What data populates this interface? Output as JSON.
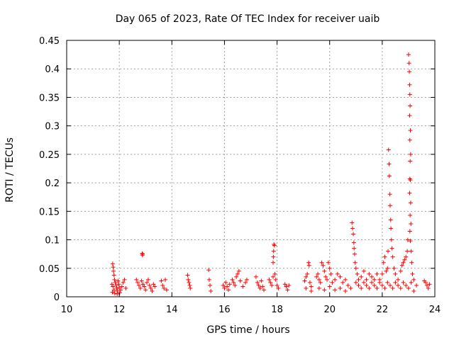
{
  "chart_data": {
    "type": "scatter",
    "title": "Day 065 of 2023, Rate Of TEC Index for receiver uaib",
    "xlabel": "GPS time / hours",
    "ylabel": "ROTI / TECUs",
    "xlim": [
      10,
      24
    ],
    "ylim": [
      0,
      0.45
    ],
    "xticks": [
      "10",
      "12",
      "14",
      "16",
      "18",
      "20",
      "22",
      "24"
    ],
    "yticks": [
      "0",
      "0.05",
      "0.1",
      "0.15",
      "0.2",
      "0.25",
      "0.3",
      "0.35",
      "0.4",
      "0.45"
    ],
    "grid": true,
    "marker": "+",
    "color": "#ff0000",
    "series": [
      {
        "points": [
          [
            11.75,
            0.058
          ],
          [
            11.77,
            0.052
          ],
          [
            11.78,
            0.045
          ],
          [
            11.8,
            0.038
          ],
          [
            11.82,
            0.03
          ],
          [
            11.72,
            0.022
          ],
          [
            11.76,
            0.018
          ],
          [
            11.8,
            0.012
          ],
          [
            11.85,
            0.025
          ],
          [
            11.88,
            0.02
          ],
          [
            11.9,
            0.015
          ],
          [
            11.93,
            0.01
          ],
          [
            11.95,
            0.028
          ],
          [
            11.98,
            0.022
          ],
          [
            12.0,
            0.016
          ],
          [
            12.05,
            0.012
          ],
          [
            12.1,
            0.018
          ],
          [
            12.15,
            0.025
          ],
          [
            12.2,
            0.03
          ],
          [
            12.25,
            0.015
          ],
          [
            11.74,
            0.008
          ],
          [
            11.83,
            0.006
          ],
          [
            11.92,
            0.005
          ],
          [
            12.02,
            0.007
          ],
          [
            12.65,
            0.03
          ],
          [
            12.7,
            0.025
          ],
          [
            12.75,
            0.02
          ],
          [
            12.8,
            0.015
          ],
          [
            12.85,
            0.028
          ],
          [
            12.9,
            0.022
          ],
          [
            12.95,
            0.018
          ],
          [
            13.0,
            0.012
          ],
          [
            13.05,
            0.025
          ],
          [
            13.1,
            0.03
          ],
          [
            13.15,
            0.02
          ],
          [
            13.2,
            0.015
          ],
          [
            13.25,
            0.01
          ],
          [
            13.3,
            0.022
          ],
          [
            13.35,
            0.018
          ],
          [
            12.87,
            0.076
          ],
          [
            12.88,
            0.073
          ],
          [
            12.89,
            0.075
          ],
          [
            13.6,
            0.028
          ],
          [
            13.65,
            0.02
          ],
          [
            13.7,
            0.015
          ],
          [
            13.75,
            0.03
          ],
          [
            13.8,
            0.012
          ],
          [
            14.6,
            0.038
          ],
          [
            14.62,
            0.03
          ],
          [
            14.65,
            0.025
          ],
          [
            14.68,
            0.02
          ],
          [
            14.7,
            0.015
          ],
          [
            15.4,
            0.047
          ],
          [
            15.42,
            0.03
          ],
          [
            15.45,
            0.02
          ],
          [
            15.48,
            0.01
          ],
          [
            15.95,
            0.02
          ],
          [
            16.0,
            0.015
          ],
          [
            16.05,
            0.025
          ],
          [
            16.1,
            0.018
          ],
          [
            16.15,
            0.012
          ],
          [
            16.2,
            0.022
          ],
          [
            16.3,
            0.03
          ],
          [
            16.35,
            0.025
          ],
          [
            16.4,
            0.02
          ],
          [
            16.45,
            0.035
          ],
          [
            16.5,
            0.04
          ],
          [
            16.55,
            0.045
          ],
          [
            16.6,
            0.028
          ],
          [
            16.7,
            0.018
          ],
          [
            16.8,
            0.025
          ],
          [
            16.85,
            0.03
          ],
          [
            17.2,
            0.035
          ],
          [
            17.25,
            0.025
          ],
          [
            17.3,
            0.02
          ],
          [
            17.35,
            0.015
          ],
          [
            17.4,
            0.028
          ],
          [
            17.45,
            0.018
          ],
          [
            17.5,
            0.012
          ],
          [
            17.7,
            0.03
          ],
          [
            17.75,
            0.025
          ],
          [
            17.8,
            0.02
          ],
          [
            17.85,
            0.035
          ],
          [
            17.88,
            0.092
          ],
          [
            17.9,
            0.09
          ],
          [
            17.87,
            0.08
          ],
          [
            17.86,
            0.07
          ],
          [
            17.85,
            0.06
          ],
          [
            17.92,
            0.04
          ],
          [
            17.95,
            0.03
          ],
          [
            18.0,
            0.02
          ],
          [
            18.05,
            0.015
          ],
          [
            18.3,
            0.022
          ],
          [
            18.35,
            0.018
          ],
          [
            18.4,
            0.012
          ],
          [
            18.45,
            0.02
          ],
          [
            19.05,
            0.028
          ],
          [
            19.1,
            0.035
          ],
          [
            19.15,
            0.04
          ],
          [
            19.2,
            0.06
          ],
          [
            19.22,
            0.055
          ],
          [
            19.25,
            0.025
          ],
          [
            19.3,
            0.018
          ],
          [
            19.5,
            0.035
          ],
          [
            19.55,
            0.04
          ],
          [
            19.6,
            0.03
          ],
          [
            19.65,
            0.025
          ],
          [
            19.7,
            0.06
          ],
          [
            19.75,
            0.055
          ],
          [
            19.8,
            0.045
          ],
          [
            19.85,
            0.035
          ],
          [
            19.9,
            0.03
          ],
          [
            19.95,
            0.06
          ],
          [
            20.0,
            0.05
          ],
          [
            20.05,
            0.04
          ],
          [
            20.1,
            0.025
          ],
          [
            20.2,
            0.03
          ],
          [
            20.3,
            0.04
          ],
          [
            20.4,
            0.035
          ],
          [
            20.5,
            0.025
          ],
          [
            20.6,
            0.03
          ],
          [
            20.7,
            0.02
          ],
          [
            20.85,
            0.13
          ],
          [
            20.87,
            0.12
          ],
          [
            20.9,
            0.11
          ],
          [
            20.92,
            0.095
          ],
          [
            20.93,
            0.085
          ],
          [
            20.95,
            0.075
          ],
          [
            20.97,
            0.06
          ],
          [
            21.0,
            0.05
          ],
          [
            21.05,
            0.04
          ],
          [
            21.1,
            0.03
          ],
          [
            21.2,
            0.035
          ],
          [
            21.3,
            0.045
          ],
          [
            21.4,
            0.03
          ],
          [
            21.5,
            0.04
          ],
          [
            21.6,
            0.035
          ],
          [
            21.7,
            0.03
          ],
          [
            21.8,
            0.04
          ],
          [
            21.9,
            0.03
          ],
          [
            22.0,
            0.04
          ],
          [
            22.05,
            0.06
          ],
          [
            22.1,
            0.07
          ],
          [
            22.15,
            0.045
          ],
          [
            22.2,
            0.05
          ],
          [
            22.22,
            0.08
          ],
          [
            22.24,
            0.258
          ],
          [
            22.26,
            0.233
          ],
          [
            22.27,
            0.212
          ],
          [
            22.29,
            0.18
          ],
          [
            22.3,
            0.16
          ],
          [
            22.32,
            0.135
          ],
          [
            22.33,
            0.12
          ],
          [
            22.35,
            0.1
          ],
          [
            22.37,
            0.085
          ],
          [
            22.4,
            0.07
          ],
          [
            22.45,
            0.05
          ],
          [
            22.5,
            0.04
          ],
          [
            22.6,
            0.03
          ],
          [
            22.7,
            0.045
          ],
          [
            22.75,
            0.055
          ],
          [
            22.8,
            0.06
          ],
          [
            22.85,
            0.065
          ],
          [
            22.9,
            0.07
          ],
          [
            22.95,
            0.08
          ],
          [
            22.97,
            0.1
          ],
          [
            23.0,
            0.425
          ],
          [
            23.02,
            0.41
          ],
          [
            23.03,
            0.395
          ],
          [
            23.04,
            0.372
          ],
          [
            23.05,
            0.355
          ],
          [
            23.06,
            0.335
          ],
          [
            23.04,
            0.318
          ],
          [
            23.07,
            0.292
          ],
          [
            23.05,
            0.275
          ],
          [
            23.08,
            0.25
          ],
          [
            23.06,
            0.238
          ],
          [
            23.05,
            0.207
          ],
          [
            23.07,
            0.205
          ],
          [
            23.04,
            0.182
          ],
          [
            23.08,
            0.165
          ],
          [
            23.06,
            0.143
          ],
          [
            23.09,
            0.128
          ],
          [
            23.05,
            0.115
          ],
          [
            23.07,
            0.098
          ],
          [
            23.1,
            0.08
          ],
          [
            23.12,
            0.06
          ],
          [
            23.15,
            0.04
          ],
          [
            23.2,
            0.03
          ],
          [
            23.3,
            0.02
          ],
          [
            23.6,
            0.028
          ],
          [
            23.65,
            0.025
          ],
          [
            23.7,
            0.02
          ],
          [
            23.75,
            0.015
          ],
          [
            23.8,
            0.022
          ],
          [
            21.0,
            0.025
          ],
          [
            21.1,
            0.02
          ],
          [
            21.2,
            0.015
          ],
          [
            21.3,
            0.025
          ],
          [
            21.4,
            0.02
          ],
          [
            21.5,
            0.015
          ],
          [
            21.6,
            0.025
          ],
          [
            21.7,
            0.02
          ],
          [
            21.8,
            0.015
          ],
          [
            21.9,
            0.025
          ],
          [
            22.0,
            0.02
          ],
          [
            22.1,
            0.015
          ],
          [
            22.2,
            0.025
          ],
          [
            22.3,
            0.02
          ],
          [
            22.4,
            0.015
          ],
          [
            22.5,
            0.025
          ],
          [
            22.6,
            0.02
          ],
          [
            22.7,
            0.015
          ],
          [
            22.8,
            0.025
          ],
          [
            22.9,
            0.02
          ],
          [
            23.0,
            0.015
          ],
          [
            23.1,
            0.025
          ],
          [
            23.2,
            0.01
          ],
          [
            19.1,
            0.015
          ],
          [
            19.3,
            0.01
          ],
          [
            19.6,
            0.015
          ],
          [
            19.8,
            0.012
          ],
          [
            20.0,
            0.018
          ],
          [
            20.2,
            0.012
          ],
          [
            20.4,
            0.015
          ],
          [
            20.6,
            0.01
          ],
          [
            20.8,
            0.015
          ]
        ]
      }
    ]
  }
}
